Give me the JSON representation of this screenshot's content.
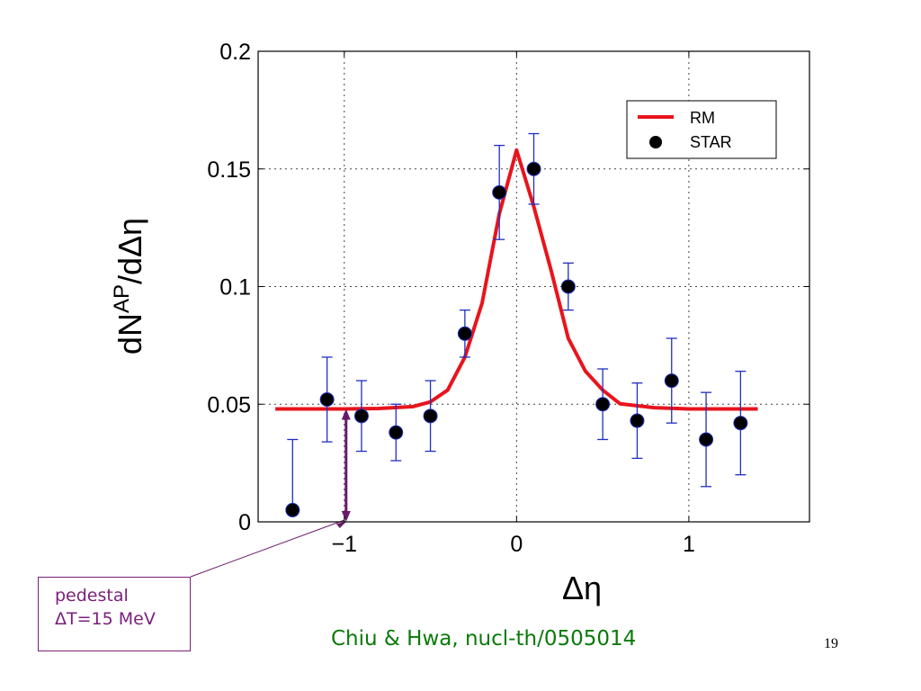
{
  "chart_data": {
    "type": "line",
    "xlabel": "Δη",
    "ylabel_base": "dN",
    "ylabel_sup": "AP",
    "ylabel_rest": "/dΔη",
    "xlim": [
      -1.5,
      1.7
    ],
    "ylim": [
      0,
      0.2
    ],
    "xticks": [
      -1,
      0,
      1
    ],
    "xtick_labels": [
      "−1",
      "0",
      "1"
    ],
    "yticks": [
      0,
      0.05,
      0.1,
      0.15,
      0.2
    ],
    "ytick_labels": [
      "0",
      "0.05",
      "0.1",
      "0.15",
      "0.2"
    ],
    "grid": true,
    "legend_position": "top-right",
    "series": [
      {
        "name": "RM",
        "type": "line",
        "color": "#e8141c",
        "x": [
          -1.4,
          -1.0,
          -0.8,
          -0.6,
          -0.5,
          -0.4,
          -0.3,
          -0.2,
          -0.1,
          0.0,
          0.1,
          0.2,
          0.3,
          0.4,
          0.5,
          0.6,
          0.8,
          1.0,
          1.4
        ],
        "y": [
          0.048,
          0.048,
          0.0482,
          0.049,
          0.051,
          0.056,
          0.07,
          0.093,
          0.131,
          0.158,
          0.134,
          0.107,
          0.078,
          0.064,
          0.056,
          0.0502,
          0.0485,
          0.048,
          0.048
        ]
      },
      {
        "name": "STAR",
        "type": "scatter",
        "color": "#000000",
        "errorbar_color": "#1f2fbf",
        "x": [
          -1.3,
          -1.1,
          -0.9,
          -0.7,
          -0.5,
          -0.3,
          -0.1,
          0.1,
          0.3,
          0.5,
          0.7,
          0.9,
          1.1,
          1.3
        ],
        "y": [
          0.005,
          0.052,
          0.045,
          0.038,
          0.045,
          0.08,
          0.14,
          0.15,
          0.1,
          0.05,
          0.043,
          0.06,
          0.035,
          0.042
        ],
        "yerr_low": [
          0.005,
          0.034,
          0.03,
          0.026,
          0.03,
          0.07,
          0.12,
          0.135,
          0.09,
          0.035,
          0.027,
          0.042,
          0.015,
          0.02
        ],
        "yerr_high": [
          0.035,
          0.07,
          0.06,
          0.05,
          0.06,
          0.09,
          0.16,
          0.165,
          0.11,
          0.065,
          0.059,
          0.078,
          0.055,
          0.064
        ]
      }
    ],
    "legend": [
      {
        "label": "RM",
        "symbol": "line",
        "color": "#e8141c"
      },
      {
        "label": "STAR",
        "symbol": "dot",
        "color": "#000000"
      }
    ],
    "pedestal_arrow": {
      "x": -1.0,
      "y_from": 0,
      "y_to": 0.048,
      "color": "#6a1a6a"
    }
  },
  "annotation": {
    "line1": "pedestal",
    "line2": "ΔT=15 MeV"
  },
  "citation": "Chiu & Hwa, nucl-th/0505014",
  "slide_number": "19"
}
